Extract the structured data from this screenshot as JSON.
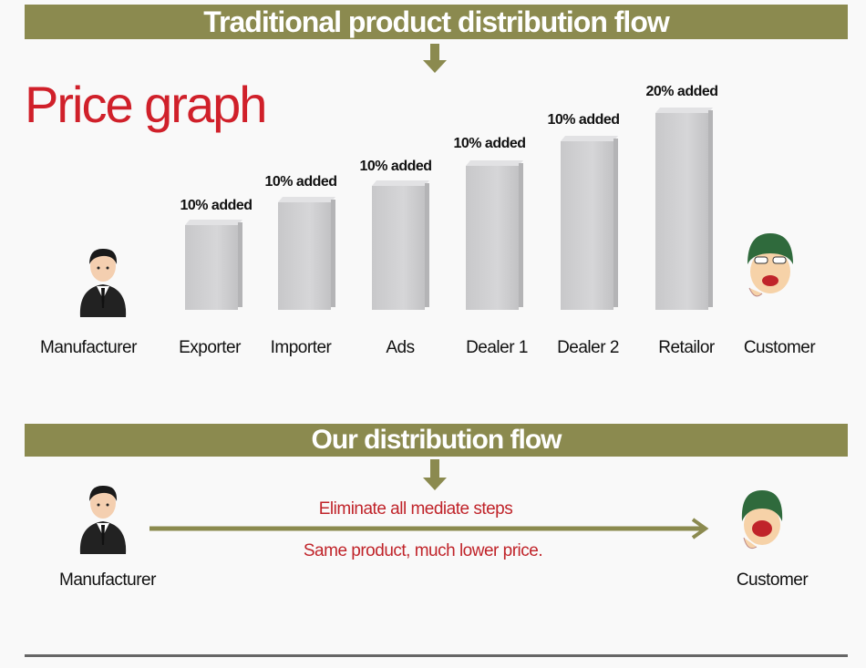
{
  "traditional": {
    "banner": "Traditional product distribution flow",
    "title": "Price graph",
    "start": "Manufacturer",
    "end": "Customer",
    "steps": [
      {
        "label": "Exporter",
        "added": "10% added"
      },
      {
        "label": "Importer",
        "added": "10% added"
      },
      {
        "label": "Ads",
        "added": "10% added"
      },
      {
        "label": "Dealer 1",
        "added": "10% added"
      },
      {
        "label": "Dealer 2",
        "added": "10% added"
      },
      {
        "label": "Retailor",
        "added": "20% added"
      }
    ]
  },
  "ours": {
    "banner": "Our distribution flow",
    "start": "Manufacturer",
    "end": "Customer",
    "line1": "Eliminate all mediate steps",
    "line2": "Same product, much lower price."
  },
  "colors": {
    "banner": "#8b8a4f",
    "accent": "#d0202a"
  }
}
